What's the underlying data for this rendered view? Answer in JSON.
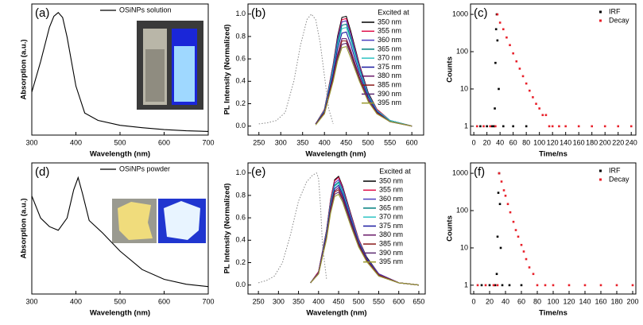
{
  "chart_data": [
    {
      "type": "line",
      "panel_label": "(a)",
      "xlabel": "Wavelength (nm)",
      "ylabel": "Absorption (a.u.)",
      "xlim": [
        300,
        700
      ],
      "ylim": [
        0,
        1.07
      ],
      "xticks": [
        300,
        400,
        500,
        600,
        700
      ],
      "legend": "top-right",
      "series": [
        {
          "name": "OSiNPs solution",
          "color": "#000000",
          "x": [
            300,
            320,
            340,
            350,
            360,
            370,
            380,
            400,
            420,
            450,
            500,
            550,
            600,
            650,
            700
          ],
          "values": [
            0.35,
            0.6,
            0.88,
            0.97,
            1.0,
            0.96,
            0.8,
            0.4,
            0.18,
            0.12,
            0.08,
            0.06,
            0.045,
            0.035,
            0.03
          ]
        }
      ]
    },
    {
      "type": "line",
      "panel_label": "(b)",
      "xlabel": "Wavelength (nm)",
      "ylabel": "PL Intensity (Normalized)",
      "xlim": [
        225,
        627
      ],
      "ylim": [
        -0.08,
        1.09
      ],
      "xticks": [
        250,
        300,
        350,
        400,
        450,
        500,
        550,
        600
      ],
      "yticks": [
        {
          "value": 0,
          "label": "0.0"
        },
        0.2,
        0.4,
        0.6,
        0.8,
        {
          "value": 1,
          "label": "1.0"
        }
      ],
      "legend": "top-right",
      "legend_title": "Excited at",
      "x": [
        380,
        400,
        420,
        430,
        440,
        450,
        460,
        480,
        500,
        520,
        550,
        600
      ],
      "series": [
        {
          "name": "350 nm",
          "color": "#000000",
          "values": [
            0.02,
            0.15,
            0.55,
            0.8,
            0.97,
            0.98,
            0.85,
            0.55,
            0.3,
            0.15,
            0.05,
            0
          ]
        },
        {
          "name": "355 nm",
          "color": "#e0104a",
          "values": [
            0.02,
            0.15,
            0.54,
            0.78,
            0.95,
            0.96,
            0.83,
            0.54,
            0.29,
            0.15,
            0.05,
            0
          ]
        },
        {
          "name": "360 nm",
          "color": "#4b3fbf",
          "values": [
            0.02,
            0.14,
            0.53,
            0.77,
            0.93,
            0.94,
            0.82,
            0.53,
            0.29,
            0.14,
            0.05,
            0
          ]
        },
        {
          "name": "365 nm",
          "color": "#008080",
          "values": [
            0.02,
            0.14,
            0.51,
            0.74,
            0.9,
            0.91,
            0.79,
            0.51,
            0.28,
            0.14,
            0.05,
            0
          ]
        },
        {
          "name": "370 nm",
          "color": "#2fc4c4",
          "values": [
            0.02,
            0.14,
            0.5,
            0.72,
            0.87,
            0.88,
            0.77,
            0.5,
            0.27,
            0.14,
            0.05,
            0
          ]
        },
        {
          "name": "375 nm",
          "color": "#1a1aa0",
          "values": [
            0.02,
            0.13,
            0.47,
            0.69,
            0.83,
            0.84,
            0.73,
            0.47,
            0.26,
            0.13,
            0.04,
            0
          ]
        },
        {
          "name": "380 nm",
          "color": "#6a1b6a",
          "values": [
            0.02,
            0.12,
            0.44,
            0.64,
            0.78,
            0.78,
            0.68,
            0.44,
            0.24,
            0.12,
            0.04,
            0
          ]
        },
        {
          "name": "385 nm",
          "color": "#8b1a1a",
          "values": [
            0.02,
            0.12,
            0.43,
            0.62,
            0.76,
            0.76,
            0.66,
            0.43,
            0.23,
            0.12,
            0.04,
            0
          ]
        },
        {
          "name": "390 nm",
          "color": "#5a2a70",
          "values": [
            0.02,
            0.11,
            0.41,
            0.6,
            0.73,
            0.74,
            0.64,
            0.41,
            0.23,
            0.11,
            0.04,
            0
          ]
        },
        {
          "name": "395 nm",
          "color": "#9a9a30",
          "values": [
            0.01,
            0.11,
            0.4,
            0.58,
            0.7,
            0.71,
            0.61,
            0.4,
            0.22,
            0.11,
            0.04,
            0
          ]
        },
        {
          "color": "#888888",
          "style": "dotted",
          "x": [
            250,
            270,
            290,
            310,
            330,
            345,
            360,
            370,
            380,
            390,
            400,
            410,
            420
          ],
          "values": [
            0.02,
            0.03,
            0.05,
            0.12,
            0.4,
            0.72,
            0.95,
            1.0,
            0.95,
            0.75,
            0.45,
            0.15,
            0.02
          ]
        }
      ]
    },
    {
      "type": "scatter",
      "panel_label": "(c)",
      "xlabel": "Time/ns",
      "ylabel": "Counts",
      "xlim": [
        -5,
        247
      ],
      "ylim": [
        0.58,
        1900
      ],
      "log_y": true,
      "xticks": [
        0,
        20,
        40,
        60,
        80,
        100,
        120,
        140,
        160,
        180,
        200,
        220,
        240
      ],
      "yticks": [
        1,
        10,
        100,
        1000
      ],
      "legend": "top-right",
      "series": [
        {
          "name": "IRF",
          "color": "#000000",
          "x": [
            10,
            20,
            28,
            31,
            32,
            33,
            34,
            35,
            36,
            38,
            45,
            60,
            80
          ],
          "values": [
            1,
            1,
            1,
            1,
            3,
            50,
            400,
            1000,
            200,
            10,
            1,
            1,
            1
          ]
        },
        {
          "name": "Decay",
          "color": "#e8202a",
          "x": [
            5,
            15,
            25,
            33,
            36,
            40,
            45,
            50,
            55,
            60,
            65,
            70,
            75,
            80,
            85,
            90,
            95,
            100,
            105,
            110,
            115,
            120,
            130,
            140,
            160,
            180,
            200,
            220,
            240
          ],
          "values": [
            1,
            1,
            1,
            1,
            1000,
            600,
            400,
            240,
            150,
            90,
            55,
            35,
            22,
            14,
            9,
            6,
            4,
            3,
            2,
            2,
            1,
            1,
            1,
            1,
            1,
            1,
            1,
            1,
            1
          ]
        }
      ]
    },
    {
      "type": "line",
      "panel_label": "(d)",
      "xlabel": "Wavelength (nm)",
      "ylabel": "Absorption (a.u.)",
      "xlim": [
        300,
        700
      ],
      "ylim": [
        0,
        1.07
      ],
      "xticks": [
        300,
        400,
        500,
        600,
        700
      ],
      "legend": "top-right",
      "series": [
        {
          "name": "OSiNPs powder",
          "color": "#000000",
          "x": [
            300,
            320,
            340,
            360,
            380,
            395,
            405,
            415,
            430,
            460,
            500,
            550,
            600,
            650,
            700
          ],
          "values": [
            0.8,
            0.62,
            0.55,
            0.52,
            0.62,
            0.85,
            0.95,
            0.82,
            0.6,
            0.5,
            0.35,
            0.2,
            0.12,
            0.08,
            0.06
          ]
        }
      ]
    },
    {
      "type": "line",
      "panel_label": "(e)",
      "xlabel": "Wavelength (nm)",
      "ylabel": "PL Intensity (Normalized)",
      "xlim": [
        224,
        666
      ],
      "ylim": [
        -0.08,
        1.09
      ],
      "xticks": [
        250,
        300,
        350,
        400,
        450,
        500,
        550,
        600,
        650
      ],
      "yticks": [
        {
          "value": 0,
          "label": "0.0"
        },
        0.2,
        0.4,
        0.6,
        0.8,
        {
          "value": 1,
          "label": "1.0"
        }
      ],
      "legend": "top-right",
      "legend_title": "Excited at",
      "x": [
        380,
        400,
        420,
        430,
        440,
        450,
        460,
        480,
        500,
        520,
        550,
        600,
        650
      ],
      "series": [
        {
          "name": "350 nm",
          "color": "#000000",
          "values": [
            0.02,
            0.12,
            0.49,
            0.76,
            0.94,
            0.97,
            0.88,
            0.64,
            0.41,
            0.25,
            0.1,
            0.02,
            0
          ]
        },
        {
          "name": "355 nm",
          "color": "#e0104a",
          "values": [
            0.02,
            0.12,
            0.49,
            0.76,
            0.93,
            0.96,
            0.87,
            0.63,
            0.41,
            0.24,
            0.1,
            0.02,
            0
          ]
        },
        {
          "name": "360 nm",
          "color": "#4b3fbf",
          "values": [
            0.02,
            0.11,
            0.48,
            0.74,
            0.91,
            0.94,
            0.86,
            0.62,
            0.4,
            0.24,
            0.1,
            0.02,
            0
          ]
        },
        {
          "name": "365 nm",
          "color": "#008080",
          "values": [
            0.02,
            0.11,
            0.47,
            0.73,
            0.89,
            0.92,
            0.84,
            0.6,
            0.39,
            0.23,
            0.09,
            0.02,
            0
          ]
        },
        {
          "name": "370 nm",
          "color": "#2fc4c4",
          "values": [
            0.02,
            0.11,
            0.46,
            0.72,
            0.88,
            0.91,
            0.83,
            0.6,
            0.39,
            0.23,
            0.09,
            0.02,
            0
          ]
        },
        {
          "name": "375 nm",
          "color": "#1a1aa0",
          "values": [
            0.02,
            0.11,
            0.45,
            0.7,
            0.86,
            0.89,
            0.81,
            0.59,
            0.38,
            0.23,
            0.09,
            0.02,
            0
          ]
        },
        {
          "name": "380 nm",
          "color": "#6a1b6a",
          "values": [
            0.02,
            0.11,
            0.44,
            0.69,
            0.84,
            0.87,
            0.79,
            0.57,
            0.37,
            0.22,
            0.09,
            0.02,
            0
          ]
        },
        {
          "name": "385 nm",
          "color": "#8b1a1a",
          "values": [
            0.02,
            0.1,
            0.43,
            0.67,
            0.83,
            0.85,
            0.77,
            0.56,
            0.36,
            0.22,
            0.09,
            0.02,
            0
          ]
        },
        {
          "name": "390 nm",
          "color": "#5a2a70",
          "values": [
            0.02,
            0.1,
            0.42,
            0.66,
            0.81,
            0.83,
            0.76,
            0.55,
            0.35,
            0.21,
            0.08,
            0.02,
            0
          ]
        },
        {
          "name": "395 nm",
          "color": "#9a9a30",
          "values": [
            0.02,
            0.1,
            0.41,
            0.64,
            0.79,
            0.81,
            0.74,
            0.53,
            0.34,
            0.21,
            0.08,
            0.02,
            0
          ]
        },
        {
          "color": "#888888",
          "style": "dotted",
          "x": [
            250,
            270,
            290,
            310,
            330,
            350,
            370,
            385,
            395,
            400,
            405,
            410,
            420
          ],
          "values": [
            0.02,
            0.04,
            0.08,
            0.2,
            0.45,
            0.75,
            0.92,
            0.98,
            1.0,
            0.95,
            0.7,
            0.35,
            0.05
          ]
        }
      ]
    },
    {
      "type": "scatter",
      "panel_label": "(f)",
      "xlabel": "Time/ns",
      "ylabel": "Counts",
      "xlim": [
        -4,
        204
      ],
      "ylim": [
        0.58,
        1900
      ],
      "log_y": true,
      "xticks": [
        0,
        20,
        40,
        60,
        80,
        100,
        120,
        140,
        160,
        180,
        200
      ],
      "yticks": [
        1,
        10,
        100,
        1000
      ],
      "legend": "top-right",
      "series": [
        {
          "name": "IRF",
          "color": "#000000",
          "x": [
            10,
            20,
            27,
            29,
            30,
            31,
            32,
            33,
            34,
            36,
            45,
            60
          ],
          "values": [
            1,
            1,
            1,
            2,
            20,
            300,
            1000,
            150,
            10,
            1,
            1,
            1
          ]
        },
        {
          "name": "Decay",
          "color": "#e8202a",
          "x": [
            5,
            15,
            25,
            30,
            32,
            35,
            38,
            40,
            43,
            46,
            50,
            53,
            56,
            60,
            63,
            66,
            70,
            75,
            80,
            90,
            100,
            120,
            140,
            160,
            180,
            200
          ],
          "values": [
            1,
            1,
            1,
            1,
            1000,
            600,
            350,
            250,
            150,
            90,
            50,
            30,
            20,
            12,
            8,
            5,
            3,
            2,
            1,
            1,
            1,
            1,
            1,
            1,
            1,
            1
          ]
        }
      ]
    }
  ]
}
